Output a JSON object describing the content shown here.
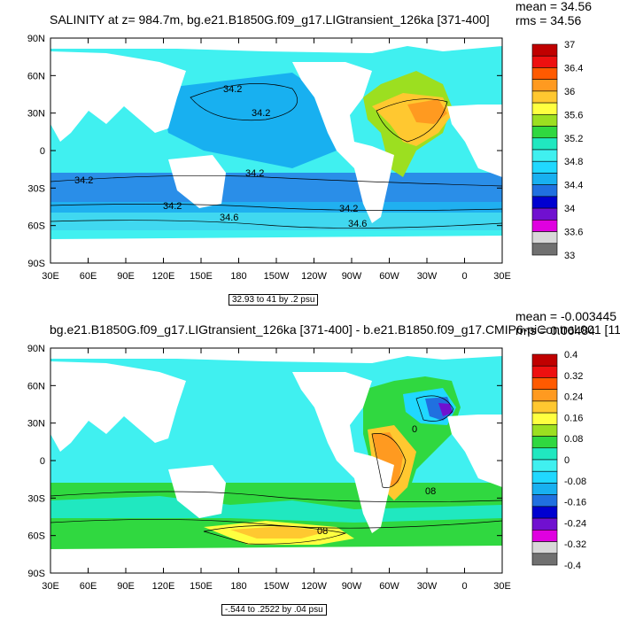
{
  "panels": [
    {
      "title": "SALINITY at z= 984.7m, bg.e21.B1850G.f09_g17.LIGtransient_126ka [371-400]",
      "mean": "mean = 34.56",
      "rms": "rms = 34.56",
      "contour_info": "32.93 to 41 by .2 psu",
      "colorbar_labels": [
        "37",
        "36.4",
        "36",
        "35.6",
        "35.2",
        "34.8",
        "34.4",
        "34",
        "33.6",
        "33"
      ],
      "colorbar_colors": [
        "#c00000",
        "#ee1010",
        "#ff5a00",
        "#ff9a20",
        "#ffc830",
        "#ffff40",
        "#9cdf20",
        "#30d840",
        "#20e8c0",
        "#40f0f0",
        "#20d8ff",
        "#18b0f0",
        "#2070e0",
        "#0000d0",
        "#7010d0",
        "#e000e0",
        "#d8d8d8",
        "#707070"
      ],
      "contour_labels": [
        "34.2",
        "34.2",
        "34.2",
        "34.2",
        "34.2",
        "34.2",
        "34.6",
        "34.6"
      ]
    },
    {
      "title": "bg.e21.B1850G.f09_g17.LIGtransient_126ka [371-400] - b.e21.B1850.f09_g17.CMIP6-piControl.001 [11",
      "mean": "mean = -0.003445",
      "rms": "rms = 0.06484",
      "contour_info": "-.544 to .2522 by .04 psu",
      "colorbar_labels": [
        "0.4",
        "0.32",
        "0.24",
        "0.16",
        "0.08",
        "0",
        "-0.08",
        "-0.16",
        "-0.24",
        "-0.32",
        "-0.4"
      ],
      "colorbar_colors": [
        "#c00000",
        "#ee1010",
        "#ff5a00",
        "#ff9a20",
        "#ffc830",
        "#ffff40",
        "#9cdf20",
        "#30d840",
        "#20e8c0",
        "#40f0f0",
        "#20d8ff",
        "#18b0f0",
        "#2070e0",
        "#0000d0",
        "#7010d0",
        "#e000e0",
        "#d8d8d8",
        "#707070"
      ],
      "contour_labels": [
        "0",
        "08",
        "08"
      ]
    }
  ],
  "x_ticks": [
    "30E",
    "60E",
    "90E",
    "120E",
    "150E",
    "180",
    "150W",
    "120W",
    "90W",
    "60W",
    "30W",
    "0",
    "30E"
  ],
  "y_ticks": [
    "90N",
    "60N",
    "30N",
    "0",
    "30S",
    "60S",
    "90S"
  ],
  "colors": {
    "land": "#ffffff",
    "ocean_base_top": "#40f0f0",
    "ocean_pacific_top": "#2a8ee8",
    "ocean_north_pacific_top": "#18b0f0",
    "ocean_atlantic_top": "#9cdf20",
    "ocean_base_bottom": "#40f0f0",
    "ocean_southern_bottom": "#30d840"
  }
}
